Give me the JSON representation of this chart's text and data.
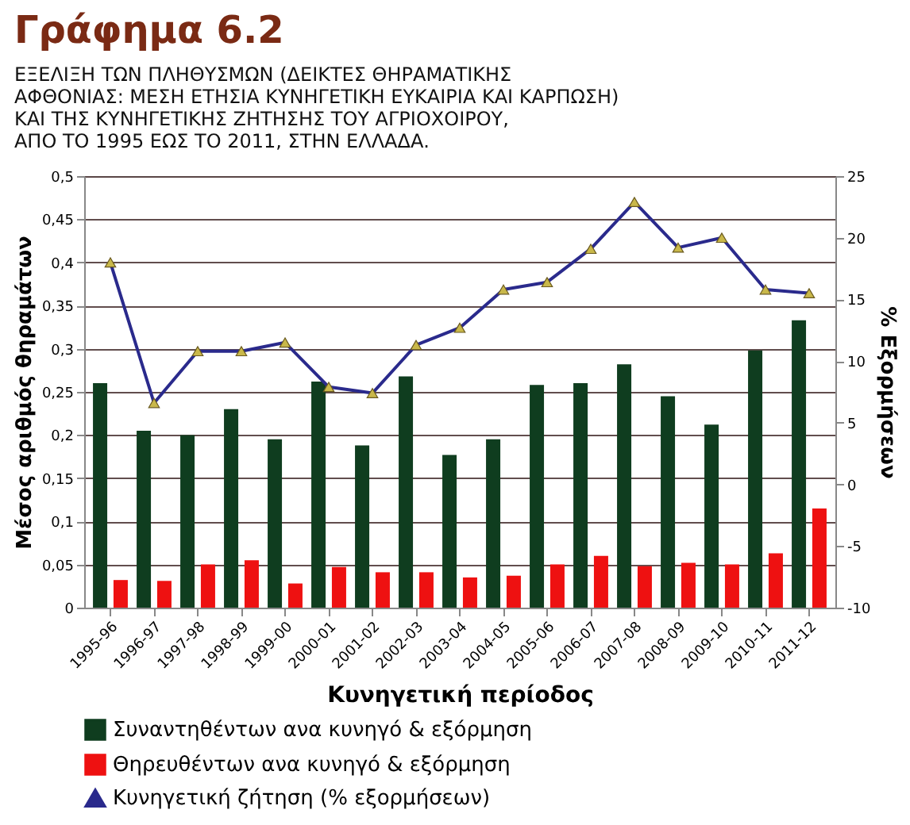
{
  "chart_data": {
    "type": "bar",
    "title": "Γράφημα 6.2",
    "subtitle": "ΕΞΕΛΙΞΗ ΤΩΝ ΠΛΗΘΥΣΜΩΝ (ΔΕΙΚΤΕΣ ΘΗΡΑΜΑΤΙΚΗΣ\nΑΦΘΟΝΙΑΣ: ΜΕΣΗ ΕΤΗΣΙΑ ΚΥΝΗΓΕΤΙΚΗ ΕΥΚΑΙΡΙΑ ΚΑΙ ΚΑΡΠΩΣΗ)\nΚΑΙ ΤΗΣ ΚΥΝΗΓΕΤΙΚΗΣ ΖΗΤΗΣΗΣ ΤΟΥ ΑΓΡΙΟΧΟΙΡΟΥ,\nΑΠΟ ΤΟ 1995 ΕΩΣ ΤΟ 2011, ΣΤΗΝ ΕΛΛΑΔΑ.",
    "xlabel": "Κυνηγετική περίοδος",
    "ylabel": "Μέσος αριθμός θηραμάτων",
    "y2label": "% Εξορμήσεων",
    "categories": [
      "1995-96",
      "1996-97",
      "1997-98",
      "1998-99",
      "1999-00",
      "2000-01",
      "2001-02",
      "2002-03",
      "2003-04",
      "2004-05",
      "2005-06",
      "2006-07",
      "2007-08",
      "2008-09",
      "2009-10",
      "2010-11",
      "2011-12"
    ],
    "series": [
      {
        "name": "Συναντηθέντων ανα κυνηγό & εξόρμηση",
        "color": "#0f3d1f",
        "values": [
          0.26,
          0.205,
          0.2,
          0.23,
          0.195,
          0.262,
          0.188,
          0.268,
          0.177,
          0.195,
          0.258,
          0.26,
          0.282,
          0.245,
          0.212,
          0.298,
          0.333
        ]
      },
      {
        "name": "Θηρευθέντων ανα κυνηγό & εξόρμηση",
        "color": "#ee1111",
        "values": [
          0.032,
          0.031,
          0.05,
          0.055,
          0.028,
          0.047,
          0.041,
          0.041,
          0.035,
          0.037,
          0.05,
          0.06,
          0.048,
          0.052,
          0.05,
          0.063,
          0.115
        ]
      },
      {
        "name": "Κυνηγετική ζήτηση (% εξορμήσεων)",
        "color": "#2a2a8c",
        "type": "line",
        "axis": "y2",
        "marker": "triangle",
        "values": [
          18,
          6.6,
          10.8,
          10.8,
          11.5,
          7.9,
          7.4,
          11.3,
          12.7,
          15.8,
          16.4,
          19.1,
          22.9,
          19.2,
          20.0,
          15.8,
          15.5
        ]
      }
    ],
    "ylim": [
      0,
      0.5
    ],
    "yticks": [
      0,
      {
        "value": 0.05,
        "label": "0,05"
      },
      {
        "value": 0.1,
        "label": "0,1"
      },
      {
        "value": 0.15,
        "label": "0,15"
      },
      {
        "value": 0.2,
        "label": "0,2"
      },
      {
        "value": 0.25,
        "label": "0,25"
      },
      {
        "value": 0.3,
        "label": "0,3"
      },
      {
        "value": 0.35,
        "label": "0,35"
      },
      {
        "value": 0.4,
        "label": "0,4"
      },
      {
        "value": 0.45,
        "label": "0,45"
      },
      {
        "value": 0.5,
        "label": "0,5"
      }
    ],
    "y2lim": [
      -10,
      25
    ],
    "y2ticks": [
      -10,
      -5,
      0,
      5,
      10,
      15,
      20,
      25
    ],
    "grid": "y",
    "legend": "bottom"
  }
}
